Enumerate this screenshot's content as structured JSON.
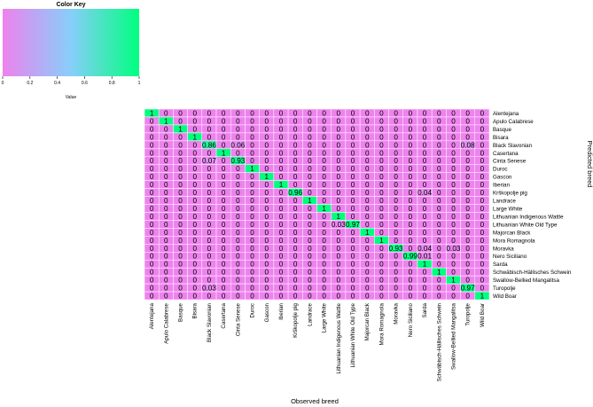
{
  "colors": {
    "low": "#ee82ee",
    "mid": "#87cefa",
    "high": "#00ff7f",
    "grid": "#ffffff",
    "text": "#000000"
  },
  "chart_data": {
    "type": "heatmap",
    "xlabel": "Observed  breed",
    "ylabel": "Predicted breed",
    "color_key": {
      "title": "Color Key",
      "label": "Value",
      "range": [
        0,
        1
      ],
      "ticks": [
        "0",
        "0.2",
        "0.4",
        "0.6",
        "0.8",
        "1"
      ]
    },
    "columns": [
      "Alentejana",
      "Apulo Calabrese",
      "Basque",
      "Bisara",
      "Black Slavonian",
      "Casertana",
      "Cinta Senese",
      "Duroc",
      "Gascon",
      "Iberian",
      "Krškopolje pig",
      "Landrace",
      "Large White",
      "Lithuanian Indigenous Wattle",
      "Lithuanian White Old Type",
      "Majorcan Black",
      "Mora Romagnola",
      "Moravka",
      "Nero Siciliano",
      "Sarda",
      "Schwäbisch-Hällisches Schwein",
      "Swallow-Bellied Mangalitsa",
      "Turopolje",
      "Wild Boar"
    ],
    "rows": [
      "Alentejana",
      "Apulo Calabrese",
      "Basque",
      "Bisara",
      "Black Slavonian",
      "Casertana",
      "Cinta Senese",
      "Duroc",
      "Gascon",
      "Iberian",
      "Krškopolje pig",
      "Landrace",
      "Large White",
      "Lithuanian Indigenous Wattle",
      "Lithuanian White Old Type",
      "Majorcan Black",
      "Mora Romagnola",
      "Moravka",
      "Nero Siciliano",
      "Sarda",
      "Schwäbisch-Hällisches Schwein",
      "Swallow-Bellied Mangalitsa",
      "Turopolje",
      "Wild Boar"
    ],
    "values": [
      [
        1,
        0,
        0,
        0,
        0,
        0,
        0,
        0,
        0,
        0,
        0,
        0,
        0,
        0,
        0,
        0,
        0,
        0,
        0,
        0,
        0,
        0,
        0,
        0
      ],
      [
        0,
        1,
        0,
        0,
        0,
        0,
        0,
        0,
        0,
        0,
        0,
        0,
        0,
        0,
        0,
        0,
        0,
        0,
        0,
        0,
        0,
        0,
        0,
        0
      ],
      [
        0,
        0,
        1,
        0,
        0,
        0,
        0,
        0,
        0,
        0,
        0,
        0,
        0,
        0,
        0,
        0,
        0,
        0,
        0,
        0,
        0,
        0,
        0,
        0
      ],
      [
        0,
        0,
        0,
        1,
        0,
        0,
        0,
        0,
        0,
        0,
        0,
        0,
        0,
        0,
        0,
        0,
        0,
        0,
        0,
        0,
        0,
        0,
        0,
        0
      ],
      [
        0,
        0,
        0,
        0,
        0.86,
        0,
        0.06,
        0,
        0,
        0,
        0,
        0,
        0,
        0,
        0,
        0,
        0,
        0,
        0,
        0,
        0,
        0,
        0.08,
        0
      ],
      [
        0,
        0,
        0,
        0,
        0,
        1,
        0,
        0,
        0,
        0,
        0,
        0,
        0,
        0,
        0,
        0,
        0,
        0,
        0,
        0,
        0,
        0,
        0,
        0
      ],
      [
        0,
        0,
        0,
        0,
        0.07,
        0,
        0.93,
        0,
        0,
        0,
        0,
        0,
        0,
        0,
        0,
        0,
        0,
        0,
        0,
        0,
        0,
        0,
        0,
        0
      ],
      [
        0,
        0,
        0,
        0,
        0,
        0,
        0,
        1,
        0,
        0,
        0,
        0,
        0,
        0,
        0,
        0,
        0,
        0,
        0,
        0,
        0,
        0,
        0,
        0
      ],
      [
        0,
        0,
        0,
        0,
        0,
        0,
        0,
        0,
        1,
        0,
        0,
        0,
        0,
        0,
        0,
        0,
        0,
        0,
        0,
        0,
        0,
        0,
        0,
        0
      ],
      [
        0,
        0,
        0,
        0,
        0,
        0,
        0,
        0,
        0,
        1,
        0,
        0,
        0,
        0,
        0,
        0,
        0,
        0,
        0,
        0,
        0,
        0,
        0,
        0
      ],
      [
        0,
        0,
        0,
        0,
        0,
        0,
        0,
        0,
        0,
        0,
        0.96,
        0,
        0,
        0,
        0,
        0,
        0,
        0,
        0,
        0.04,
        0,
        0,
        0,
        0
      ],
      [
        0,
        0,
        0,
        0,
        0,
        0,
        0,
        0,
        0,
        0,
        0,
        1,
        0,
        0,
        0,
        0,
        0,
        0,
        0,
        0,
        0,
        0,
        0,
        0
      ],
      [
        0,
        0,
        0,
        0,
        0,
        0,
        0,
        0,
        0,
        0,
        0,
        0,
        1,
        0,
        0,
        0,
        0,
        0,
        0,
        0,
        0,
        0,
        0,
        0
      ],
      [
        0,
        0,
        0,
        0,
        0,
        0,
        0,
        0,
        0,
        0,
        0,
        0,
        0,
        1,
        0,
        0,
        0,
        0,
        0,
        0,
        0,
        0,
        0,
        0
      ],
      [
        0,
        0,
        0,
        0,
        0,
        0,
        0,
        0,
        0,
        0,
        0,
        0,
        0,
        0.03,
        0.97,
        0,
        0,
        0,
        0,
        0,
        0,
        0,
        0,
        0
      ],
      [
        0,
        0,
        0,
        0,
        0,
        0,
        0,
        0,
        0,
        0,
        0,
        0,
        0,
        0,
        0,
        1,
        0,
        0,
        0,
        0,
        0,
        0,
        0,
        0
      ],
      [
        0,
        0,
        0,
        0,
        0,
        0,
        0,
        0,
        0,
        0,
        0,
        0,
        0,
        0,
        0,
        0,
        1,
        0,
        0,
        0,
        0,
        0,
        0,
        0
      ],
      [
        0,
        0,
        0,
        0,
        0,
        0,
        0,
        0,
        0,
        0,
        0,
        0,
        0,
        0,
        0,
        0,
        0,
        0.93,
        0,
        0.04,
        0,
        0.03,
        0,
        0
      ],
      [
        0,
        0,
        0,
        0,
        0,
        0,
        0,
        0,
        0,
        0,
        0,
        0,
        0,
        0,
        0,
        0,
        0,
        0,
        0.99,
        0.01,
        0,
        0,
        0,
        0
      ],
      [
        0,
        0,
        0,
        0,
        0,
        0,
        0,
        0,
        0,
        0,
        0,
        0,
        0,
        0,
        0,
        0,
        0,
        0,
        0,
        1,
        0,
        0,
        0,
        0
      ],
      [
        0,
        0,
        0,
        0,
        0,
        0,
        0,
        0,
        0,
        0,
        0,
        0,
        0,
        0,
        0,
        0,
        0,
        0,
        0,
        0,
        1,
        0,
        0,
        0
      ],
      [
        0,
        0,
        0,
        0,
        0,
        0,
        0,
        0,
        0,
        0,
        0,
        0,
        0,
        0,
        0,
        0,
        0,
        0,
        0,
        0,
        0,
        1,
        0,
        0
      ],
      [
        0,
        0,
        0,
        0,
        0.03,
        0,
        0,
        0,
        0,
        0,
        0,
        0,
        0,
        0,
        0,
        0,
        0,
        0,
        0,
        0,
        0,
        0,
        0.97,
        0
      ],
      [
        0,
        0,
        0,
        0,
        0,
        0,
        0,
        0,
        0,
        0,
        0,
        0,
        0,
        0,
        0,
        0,
        0,
        0,
        0,
        0,
        0,
        0,
        0,
        1
      ]
    ]
  }
}
